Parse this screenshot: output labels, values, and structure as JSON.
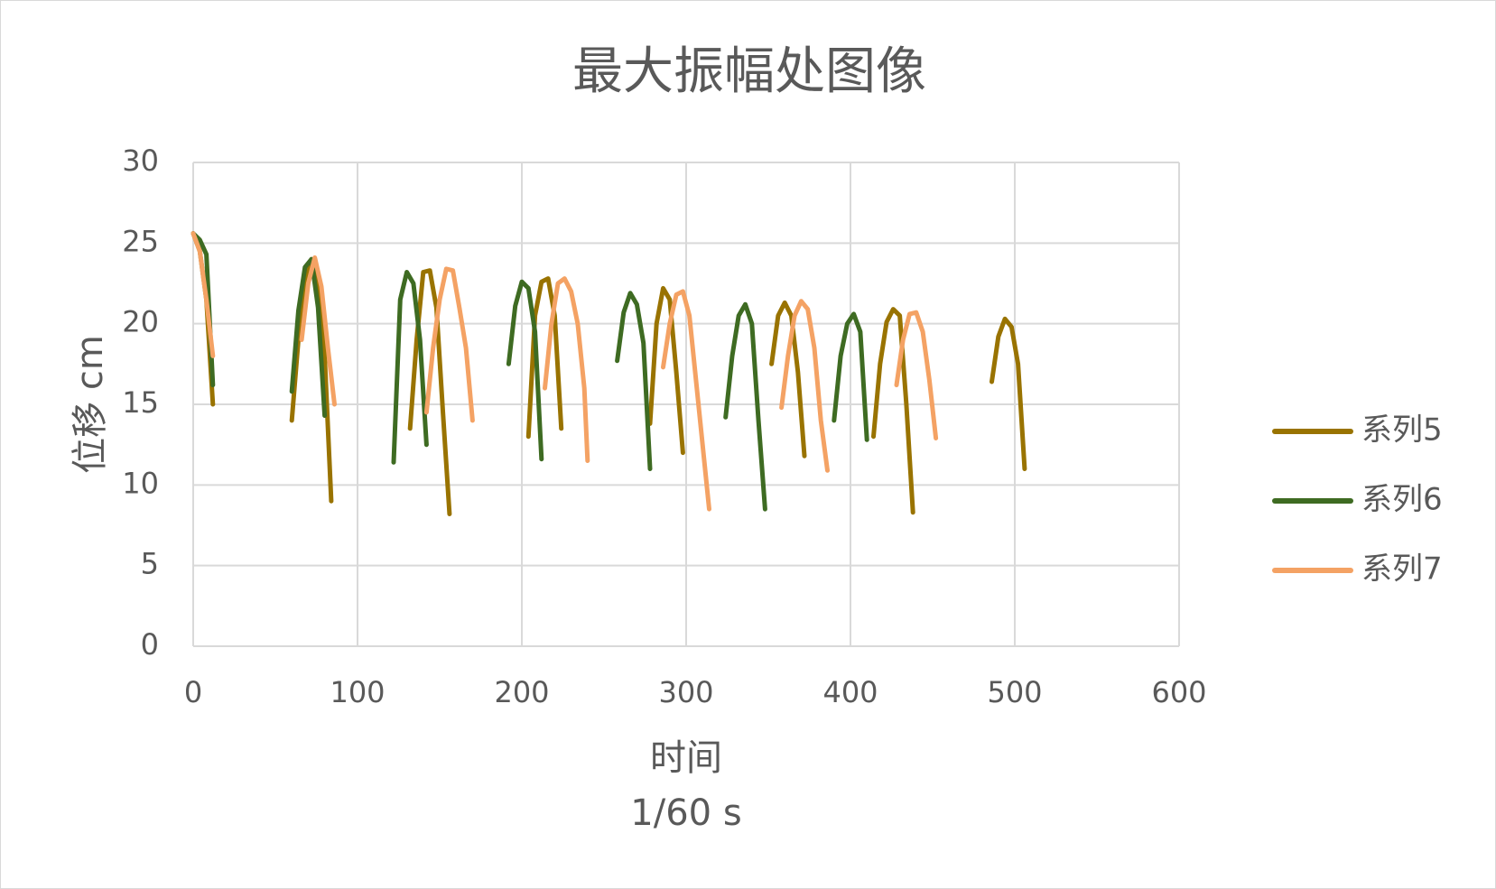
{
  "colors": {
    "background": "#ffffff",
    "grid": "#d9d9d9",
    "text": "#595959"
  },
  "chart_data": {
    "type": "line",
    "title": "最大振幅处图像",
    "xlabel_line1": "时间",
    "xlabel_line2": "1/60 s",
    "ylabel": "位移 cm",
    "xlim": [
      0,
      600
    ],
    "ylim": [
      0,
      30
    ],
    "xticks": [
      0,
      100,
      200,
      300,
      400,
      500,
      600
    ],
    "yticks": [
      0,
      5,
      10,
      15,
      20,
      25,
      30
    ],
    "grid": true,
    "legend_position": "right",
    "series": [
      {
        "name": "系列5",
        "color": "#997300",
        "segments": [
          [
            [
              0,
              25.6
            ],
            [
              4,
              24.5
            ],
            [
              8,
              21.5
            ],
            [
              12,
              15
            ]
          ],
          [
            [
              60,
              14
            ],
            [
              64,
              19
            ],
            [
              68,
              22.5
            ],
            [
              72,
              24
            ],
            [
              76,
              23
            ],
            [
              80,
              18
            ],
            [
              84,
              9
            ]
          ],
          [
            [
              132,
              13.5
            ],
            [
              136,
              19
            ],
            [
              140,
              23.2
            ],
            [
              144,
              23.3
            ],
            [
              148,
              21
            ],
            [
              152,
              14.5
            ],
            [
              156,
              8.2
            ]
          ],
          [
            [
              204,
              13
            ],
            [
              208,
              20.5
            ],
            [
              212,
              22.6
            ],
            [
              216,
              22.8
            ],
            [
              220,
              20.5
            ],
            [
              224,
              13.5
            ]
          ],
          [
            [
              278,
              13.8
            ],
            [
              282,
              20
            ],
            [
              286,
              22.2
            ],
            [
              290,
              21.5
            ],
            [
              294,
              17
            ],
            [
              298,
              12
            ]
          ],
          [
            [
              352,
              17.5
            ],
            [
              356,
              20.5
            ],
            [
              360,
              21.3
            ],
            [
              364,
              20.5
            ],
            [
              368,
              17
            ],
            [
              372,
              11.8
            ]
          ],
          [
            [
              414,
              13
            ],
            [
              418,
              17.5
            ],
            [
              422,
              20.1
            ],
            [
              426,
              20.9
            ],
            [
              430,
              20.5
            ],
            [
              434,
              15
            ],
            [
              438,
              8.3
            ]
          ],
          [
            [
              486,
              16.4
            ],
            [
              490,
              19.2
            ],
            [
              494,
              20.3
            ],
            [
              498,
              19.8
            ],
            [
              502,
              17.5
            ],
            [
              506,
              11
            ]
          ]
        ]
      },
      {
        "name": "系列6",
        "color": "#3e6b22",
        "segments": [
          [
            [
              0,
              25.6
            ],
            [
              4,
              25.2
            ],
            [
              8,
              24.3
            ],
            [
              12,
              16.2
            ]
          ],
          [
            [
              60,
              15.8
            ],
            [
              64,
              20.8
            ],
            [
              68,
              23.5
            ],
            [
              72,
              24
            ],
            [
              76,
              21
            ],
            [
              80,
              14.3
            ]
          ],
          [
            [
              122,
              11.4
            ],
            [
              126,
              21.5
            ],
            [
              130,
              23.2
            ],
            [
              134,
              22.5
            ],
            [
              138,
              19
            ],
            [
              142,
              12.5
            ]
          ],
          [
            [
              192,
              17.5
            ],
            [
              196,
              21.1
            ],
            [
              200,
              22.6
            ],
            [
              204,
              22.2
            ],
            [
              208,
              19.5
            ],
            [
              212,
              11.6
            ]
          ],
          [
            [
              258,
              17.7
            ],
            [
              262,
              20.7
            ],
            [
              266,
              21.9
            ],
            [
              270,
              21.2
            ],
            [
              274,
              18.8
            ],
            [
              278,
              11
            ]
          ],
          [
            [
              324,
              14.2
            ],
            [
              328,
              18
            ],
            [
              332,
              20.5
            ],
            [
              336,
              21.2
            ],
            [
              340,
              20
            ],
            [
              344,
              14
            ],
            [
              348,
              8.5
            ]
          ],
          [
            [
              390,
              14
            ],
            [
              394,
              18
            ],
            [
              398,
              20
            ],
            [
              402,
              20.6
            ],
            [
              406,
              19.5
            ],
            [
              410,
              12.8
            ]
          ]
        ]
      },
      {
        "name": "系列7",
        "color": "#f4a264",
        "segments": [
          [
            [
              0,
              25.6
            ],
            [
              4,
              24.5
            ],
            [
              8,
              21.5
            ],
            [
              12,
              18
            ]
          ],
          [
            [
              66,
              19
            ],
            [
              70,
              22.5
            ],
            [
              74,
              24.1
            ],
            [
              78,
              22.3
            ],
            [
              82,
              18.5
            ],
            [
              86,
              15
            ]
          ],
          [
            [
              142,
              14.5
            ],
            [
              146,
              18.5
            ],
            [
              150,
              21.5
            ],
            [
              154,
              23.4
            ],
            [
              158,
              23.3
            ],
            [
              162,
              21
            ],
            [
              166,
              18.5
            ],
            [
              170,
              14
            ]
          ],
          [
            [
              214,
              16
            ],
            [
              218,
              20
            ],
            [
              222,
              22.5
            ],
            [
              226,
              22.8
            ],
            [
              230,
              22
            ],
            [
              234,
              20
            ],
            [
              238,
              16
            ],
            [
              240,
              11.5
            ]
          ],
          [
            [
              286,
              17.3
            ],
            [
              290,
              20
            ],
            [
              294,
              21.8
            ],
            [
              298,
              22
            ],
            [
              302,
              20.5
            ],
            [
              306,
              16.5
            ],
            [
              310,
              12.5
            ],
            [
              314,
              8.5
            ]
          ],
          [
            [
              358,
              14.8
            ],
            [
              362,
              18
            ],
            [
              366,
              20.5
            ],
            [
              370,
              21.4
            ],
            [
              374,
              20.9
            ],
            [
              378,
              18.5
            ],
            [
              382,
              14
            ],
            [
              386,
              10.9
            ]
          ],
          [
            [
              428,
              16.2
            ],
            [
              432,
              19
            ],
            [
              436,
              20.6
            ],
            [
              440,
              20.7
            ],
            [
              444,
              19.5
            ],
            [
              448,
              16.5
            ],
            [
              452,
              12.9
            ]
          ]
        ]
      }
    ]
  }
}
